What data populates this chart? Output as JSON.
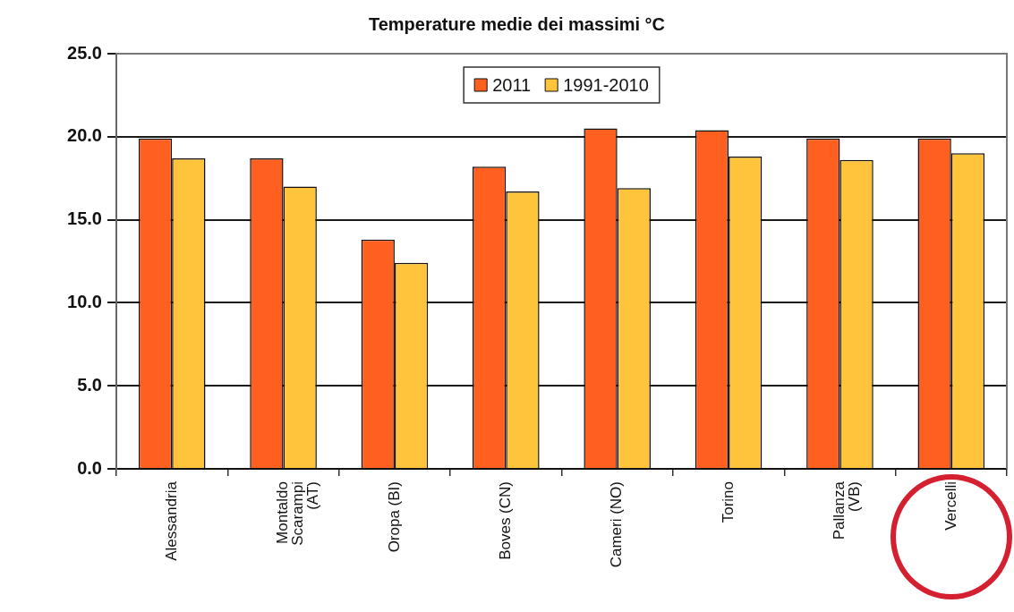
{
  "chart_data": {
    "type": "bar",
    "title": "Temperature medie dei massimi °C",
    "categories": [
      "Alessandria",
      "Montaldo Scarampi (AT)",
      "Oropa (BI)",
      "Boves (CN)",
      "Cameri (NO)",
      "Torino",
      "Pallanza (VB)",
      "Vercelli"
    ],
    "series": [
      {
        "name": "2011",
        "color": "#ff5f1f",
        "values": [
          19.9,
          18.7,
          13.8,
          18.2,
          20.5,
          20.4,
          19.9,
          19.9
        ]
      },
      {
        "name": "1991-2010",
        "color": "#fdc43c",
        "values": [
          18.7,
          17.0,
          12.4,
          16.7,
          16.9,
          18.8,
          18.6,
          19.0
        ]
      }
    ],
    "ylim": [
      0,
      25
    ],
    "yticks": [
      {
        "value": 0,
        "label": "0.0"
      },
      {
        "value": 5,
        "label": "5.0"
      },
      {
        "value": 10,
        "label": "10.0"
      },
      {
        "value": 15,
        "label": "15.0"
      },
      {
        "value": 20,
        "label": "20.0"
      },
      {
        "value": 25,
        "label": "25.0"
      }
    ],
    "grid": "y",
    "legend": "top"
  }
}
